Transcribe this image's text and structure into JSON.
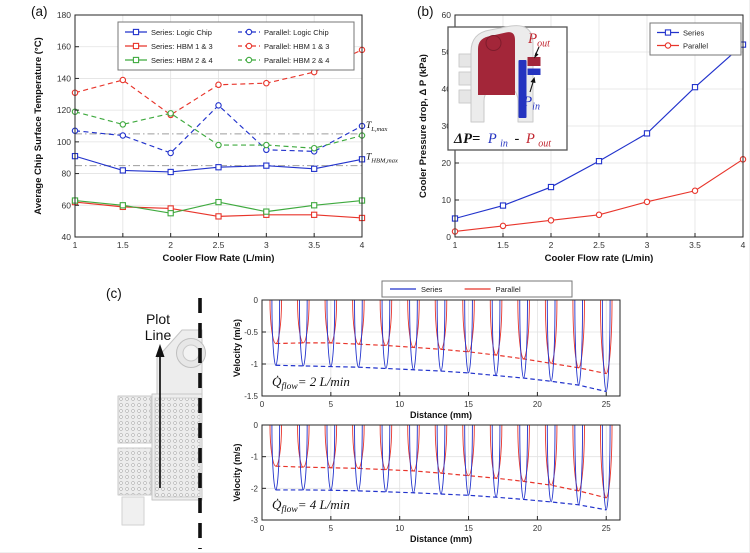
{
  "panel_labels": {
    "a": "(a)",
    "b": "(b)",
    "c": "(c)"
  },
  "schematic": {
    "label_line1": "Plot",
    "label_line2": "Line"
  },
  "inset": {
    "p_out_base": "P",
    "p_out_sub": "out",
    "p_in_base": "P",
    "p_in_sub": "in",
    "formula_dp": "ΔP=",
    "formula_pin_base": "P",
    "formula_pin_sub": "in",
    "formula_minus": "-",
    "formula_pout_base": "P",
    "formula_pout_sub": "out"
  },
  "colors": {
    "series_blue": "#2233cc",
    "parallel_red": "#e8352b",
    "hbm_green": "#3faa3f",
    "grid_gray": "#e2e2e2",
    "axis_black": "#262626",
    "ref_gray": "#9d9d9d",
    "inset_dome_red": "#a32639",
    "inset_blue": "#2433c0"
  },
  "chart_data": [
    {
      "id": "a",
      "type": "line",
      "xlabel": "Cooler Flow Rate (L/min)",
      "ylabel": "Average Chip Surface Temperature (°C)",
      "x": [
        1,
        1.5,
        2,
        2.5,
        3,
        3.5,
        4
      ],
      "xlim": [
        1,
        4
      ],
      "ylim": [
        40,
        180
      ],
      "xticks": [
        1,
        1.5,
        2,
        2.5,
        3,
        3.5,
        4
      ],
      "yticks": [
        40,
        60,
        80,
        100,
        120,
        140,
        160,
        180
      ],
      "grid": true,
      "series": [
        {
          "name": "Series: Logic Chip",
          "color": "#2233cc",
          "line": "solid",
          "marker": "square",
          "values": [
            91,
            82,
            81,
            84,
            85,
            83,
            89
          ]
        },
        {
          "name": "Series: HBM 1 & 3",
          "color": "#e8352b",
          "line": "solid",
          "marker": "square",
          "values": [
            62,
            59,
            58,
            53,
            54,
            54,
            52
          ]
        },
        {
          "name": "Series: HBM 2 & 4",
          "color": "#3faa3f",
          "line": "solid",
          "marker": "square",
          "values": [
            63,
            60,
            55,
            62,
            56,
            60,
            63
          ]
        },
        {
          "name": "Parallel: Logic Chip",
          "color": "#2233cc",
          "line": "dashed",
          "marker": "circle",
          "values": [
            107,
            104,
            93,
            123,
            95,
            94,
            110
          ]
        },
        {
          "name": "Parallel: HBM 1 & 3",
          "color": "#e8352b",
          "line": "dashed",
          "marker": "circle",
          "values": [
            131,
            139,
            117,
            136,
            137,
            144,
            158
          ]
        },
        {
          "name": "Parallel: HBM 2 & 4",
          "color": "#3faa3f",
          "line": "dashed",
          "marker": "circle",
          "values": [
            119,
            111,
            118,
            98,
            98,
            96,
            104
          ]
        }
      ],
      "ref_lines": [
        {
          "base": "T",
          "sub": "L,max",
          "value": 105
        },
        {
          "base": "T",
          "sub": "HBM,max",
          "value": 85
        }
      ],
      "legend": {
        "columns": 2
      }
    },
    {
      "id": "b",
      "type": "line",
      "xlabel": "Cooler Flow rate (L/min)",
      "ylabel": "Cooler Pressure drop, Δ P (kPa)",
      "x": [
        1,
        1.5,
        2,
        2.5,
        3,
        3.5,
        4
      ],
      "xlim": [
        1,
        4
      ],
      "ylim": [
        0,
        60
      ],
      "xticks": [
        1,
        1.5,
        2,
        2.5,
        3,
        3.5,
        4
      ],
      "yticks": [
        0,
        10,
        20,
        30,
        40,
        50,
        60
      ],
      "grid": true,
      "series": [
        {
          "name": "Series",
          "color": "#2233cc",
          "line": "solid",
          "marker": "square",
          "values": [
            5,
            8.5,
            13.5,
            20.5,
            28,
            40.5,
            52
          ]
        },
        {
          "name": "Parallel",
          "color": "#e8352b",
          "line": "solid",
          "marker": "circle",
          "values": [
            1.5,
            3,
            4.5,
            6,
            9.5,
            12.5,
            21
          ]
        }
      ],
      "legend": {
        "columns": 1
      }
    },
    {
      "id": "c1",
      "type": "velocity_profile",
      "xlabel": "Distance (mm)",
      "ylabel": "Velocity (m/s)",
      "xlim": [
        0,
        26
      ],
      "ylim": [
        -1.5,
        0
      ],
      "xticks": [
        0,
        5,
        10,
        15,
        20,
        25
      ],
      "yticks": [
        0,
        -0.5,
        -1,
        -1.5
      ],
      "grid": true,
      "annotation": {
        "base": "Q̇",
        "sub": "flow",
        "rest": "= 2 L/min"
      },
      "spike_x": [
        1,
        3,
        5,
        7,
        9,
        11,
        13,
        15,
        17,
        19,
        21,
        23,
        25
      ],
      "series": [
        {
          "name": "Series",
          "color": "#2233cc",
          "spike_halfwidth": 0.28,
          "envelope": [
            -1.02,
            -1.03,
            -1.04,
            -1.05,
            -1.07,
            -1.09,
            -1.11,
            -1.14,
            -1.18,
            -1.22,
            -1.27,
            -1.33,
            -1.43
          ]
        },
        {
          "name": "Parallel",
          "color": "#e8352b",
          "spike_halfwidth": 0.42,
          "envelope": [
            -0.68,
            -0.67,
            -0.67,
            -0.69,
            -0.71,
            -0.74,
            -0.77,
            -0.81,
            -0.86,
            -0.92,
            -0.99,
            -1.06,
            -1.15
          ]
        }
      ],
      "legend": {
        "horizontal": true
      }
    },
    {
      "id": "c2",
      "type": "velocity_profile",
      "xlabel": "Distance (mm)",
      "ylabel": "Velocity (m/s)",
      "xlim": [
        0,
        26
      ],
      "ylim": [
        -3,
        0
      ],
      "xticks": [
        0,
        5,
        10,
        15,
        20,
        25
      ],
      "yticks": [
        0,
        -1,
        -2,
        -3
      ],
      "grid": true,
      "annotation": {
        "base": "Q̇",
        "sub": "flow",
        "rest": "= 4 L/min"
      },
      "spike_x": [
        1,
        3,
        5,
        7,
        9,
        11,
        13,
        15,
        17,
        19,
        21,
        23,
        25
      ],
      "series": [
        {
          "name": "Series",
          "color": "#2233cc",
          "spike_halfwidth": 0.28,
          "envelope": [
            -2.05,
            -2.05,
            -2.06,
            -2.08,
            -2.11,
            -2.14,
            -2.18,
            -2.22,
            -2.28,
            -2.35,
            -2.43,
            -2.52,
            -2.68
          ]
        },
        {
          "name": "Parallel",
          "color": "#e8352b",
          "spike_halfwidth": 0.42,
          "envelope": [
            -1.3,
            -1.33,
            -1.35,
            -1.37,
            -1.41,
            -1.45,
            -1.52,
            -1.6,
            -1.68,
            -1.78,
            -1.9,
            -2.08,
            -2.3
          ]
        }
      ]
    }
  ]
}
